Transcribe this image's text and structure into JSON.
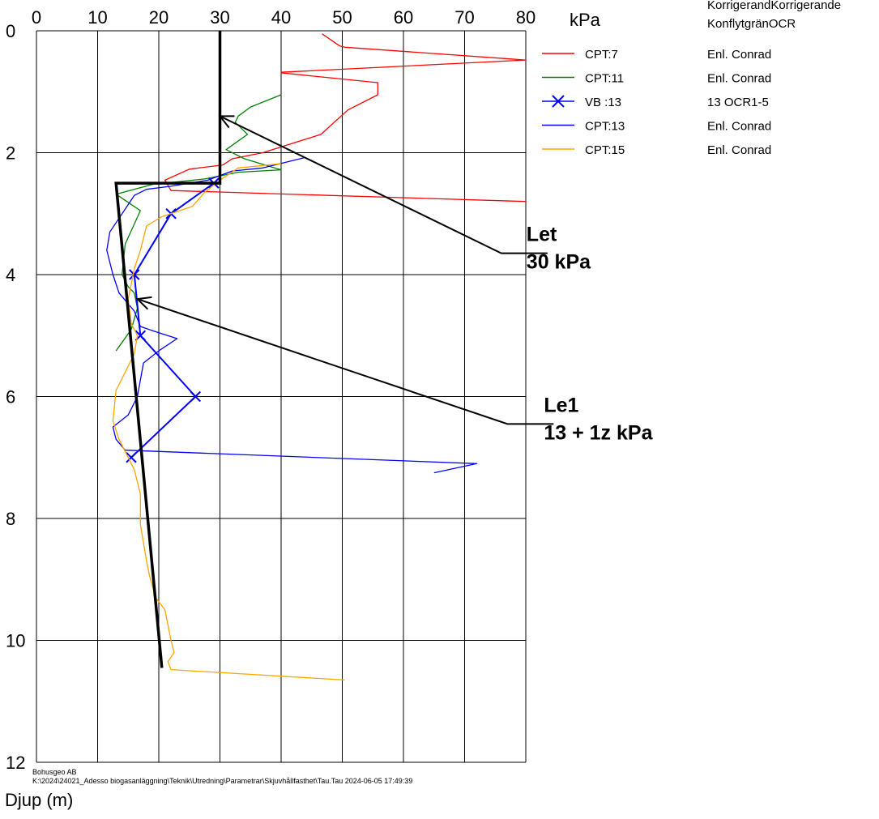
{
  "chart_data": {
    "type": "line",
    "title": "",
    "xlabel": "kPa",
    "ylabel": "Djup (m)",
    "xlim": [
      0,
      80
    ],
    "ylim": [
      12,
      0
    ],
    "x_ticks": [
      0,
      10,
      20,
      30,
      40,
      50,
      60,
      70,
      80
    ],
    "y_ticks": [
      0,
      2,
      4,
      6,
      8,
      10,
      12
    ],
    "grid": true,
    "legend_position": "right",
    "legend_header": [
      "KorrigerandKorrigerande",
      "KonflytgränOCR"
    ],
    "series": [
      {
        "name": "CPT:7",
        "note": "Enl. Conrad",
        "color": "#ff0000",
        "marker": "none",
        "points": [
          [
            46.7,
            0.05
          ],
          [
            49.6,
            0.25
          ],
          [
            50.4,
            0.27
          ],
          [
            80,
            0.48
          ],
          [
            40.0,
            0.68
          ],
          [
            40.0,
            0.69
          ],
          [
            55.8,
            0.85
          ],
          [
            55.8,
            1.05
          ],
          [
            50.9,
            1.3
          ],
          [
            46.5,
            1.7
          ],
          [
            37.0,
            2.0
          ],
          [
            32.0,
            2.1
          ],
          [
            30.5,
            2.2
          ],
          [
            25.0,
            2.27
          ],
          [
            21.0,
            2.45
          ],
          [
            22.0,
            2.62
          ],
          [
            80,
            2.8
          ]
        ]
      },
      {
        "name": "CPT:11",
        "note": "Enl. Conrad",
        "color": "#008000",
        "marker": "none",
        "points": [
          [
            40.0,
            1.05
          ],
          [
            35.0,
            1.25
          ],
          [
            33.0,
            1.4
          ],
          [
            32.5,
            1.5
          ],
          [
            34.5,
            1.7
          ],
          [
            31.0,
            1.95
          ],
          [
            34.0,
            2.1
          ],
          [
            40.0,
            2.28
          ],
          [
            33.0,
            2.32
          ],
          [
            27.5,
            2.43
          ],
          [
            19.0,
            2.52
          ],
          [
            13.0,
            2.68
          ],
          [
            17.0,
            2.95
          ],
          [
            14.5,
            3.5
          ],
          [
            14.0,
            4.0
          ],
          [
            15.0,
            4.2
          ],
          [
            16.0,
            4.3
          ],
          [
            16.5,
            4.55
          ],
          [
            15.5,
            4.9
          ],
          [
            13.0,
            5.25
          ]
        ]
      },
      {
        "name": "VB :13",
        "note": "13          OCR1-5",
        "color": "#0000ff",
        "marker": "x",
        "points": [
          [
            29.0,
            2.5
          ],
          [
            22.0,
            3.0
          ],
          [
            16.0,
            4.0
          ],
          [
            17.0,
            5.0
          ],
          [
            26.0,
            6.0
          ],
          [
            15.5,
            7.0
          ]
        ]
      },
      {
        "name": "CPT:13",
        "note": "Enl. Conrad",
        "color": "#0000ff",
        "marker": "none",
        "points": [
          [
            43.9,
            2.08
          ],
          [
            37.0,
            2.25
          ],
          [
            32.0,
            2.3
          ],
          [
            28.0,
            2.45
          ],
          [
            22.0,
            2.55
          ],
          [
            18.0,
            2.6
          ],
          [
            16.0,
            2.7
          ],
          [
            14.0,
            3.0
          ],
          [
            12.0,
            3.3
          ],
          [
            11.5,
            3.6
          ],
          [
            12.5,
            4.0
          ],
          [
            13.5,
            4.3
          ],
          [
            16.0,
            4.6
          ],
          [
            17.0,
            4.85
          ],
          [
            19.0,
            4.92
          ],
          [
            23.0,
            5.05
          ],
          [
            20.0,
            5.25
          ],
          [
            17.5,
            5.45
          ],
          [
            16.5,
            6.0
          ],
          [
            15.0,
            6.3
          ],
          [
            12.5,
            6.5
          ],
          [
            13.0,
            6.7
          ],
          [
            14.5,
            6.88
          ],
          [
            72.0,
            7.1
          ],
          [
            65.0,
            7.25
          ]
        ]
      },
      {
        "name": "CPT:15",
        "note": "Enl. Conrad",
        "color": "#ffa500",
        "marker": "none",
        "points": [
          [
            40.0,
            2.18
          ],
          [
            33.0,
            2.25
          ],
          [
            30.0,
            2.45
          ],
          [
            27.5,
            2.65
          ],
          [
            25.5,
            2.88
          ],
          [
            20.5,
            3.05
          ],
          [
            18.0,
            3.2
          ],
          [
            17.0,
            3.6
          ],
          [
            16.0,
            3.9
          ],
          [
            15.0,
            4.4
          ],
          [
            15.5,
            4.8
          ],
          [
            16.5,
            5.0
          ],
          [
            16.0,
            5.3
          ],
          [
            13.0,
            5.9
          ],
          [
            12.5,
            6.4
          ],
          [
            13.5,
            6.7
          ],
          [
            16.0,
            7.2
          ],
          [
            17.0,
            7.6
          ],
          [
            17.0,
            8.1
          ],
          [
            18.0,
            8.7
          ],
          [
            18.5,
            8.95
          ],
          [
            19.5,
            9.3
          ],
          [
            21.0,
            9.5
          ],
          [
            22.0,
            10.0
          ],
          [
            22.5,
            10.2
          ],
          [
            21.5,
            10.35
          ],
          [
            22.0,
            10.48
          ],
          [
            50.4,
            10.65
          ]
        ]
      }
    ],
    "evaluated_lines": [
      {
        "name": "Let",
        "label_lines": [
          "Let",
          "30 kPa"
        ],
        "points": [
          [
            30,
            0
          ],
          [
            30,
            2.5
          ],
          [
            13,
            2.5
          ],
          [
            20.5,
            10.45
          ]
        ]
      }
    ],
    "annotations": [
      {
        "label_lines": [
          "Let",
          "30 kPa"
        ],
        "arrow_tip": [
          30,
          1.4
        ],
        "elbow": [
          76,
          3.65
        ]
      },
      {
        "label_lines": [
          "Le1",
          "13 + 1z kPa"
        ],
        "arrow_tip": [
          16.5,
          4.4
        ],
        "elbow": [
          77,
          6.45
        ]
      }
    ],
    "footer": [
      "Bohusgeo AB",
      "K:\\2024\\24021_Adesso biogasanläggning\\Teknik\\Utredning\\Parametrar\\Skjuvhållfasthet\\Tau.Tau   2024-06-05 17:49:39"
    ]
  }
}
